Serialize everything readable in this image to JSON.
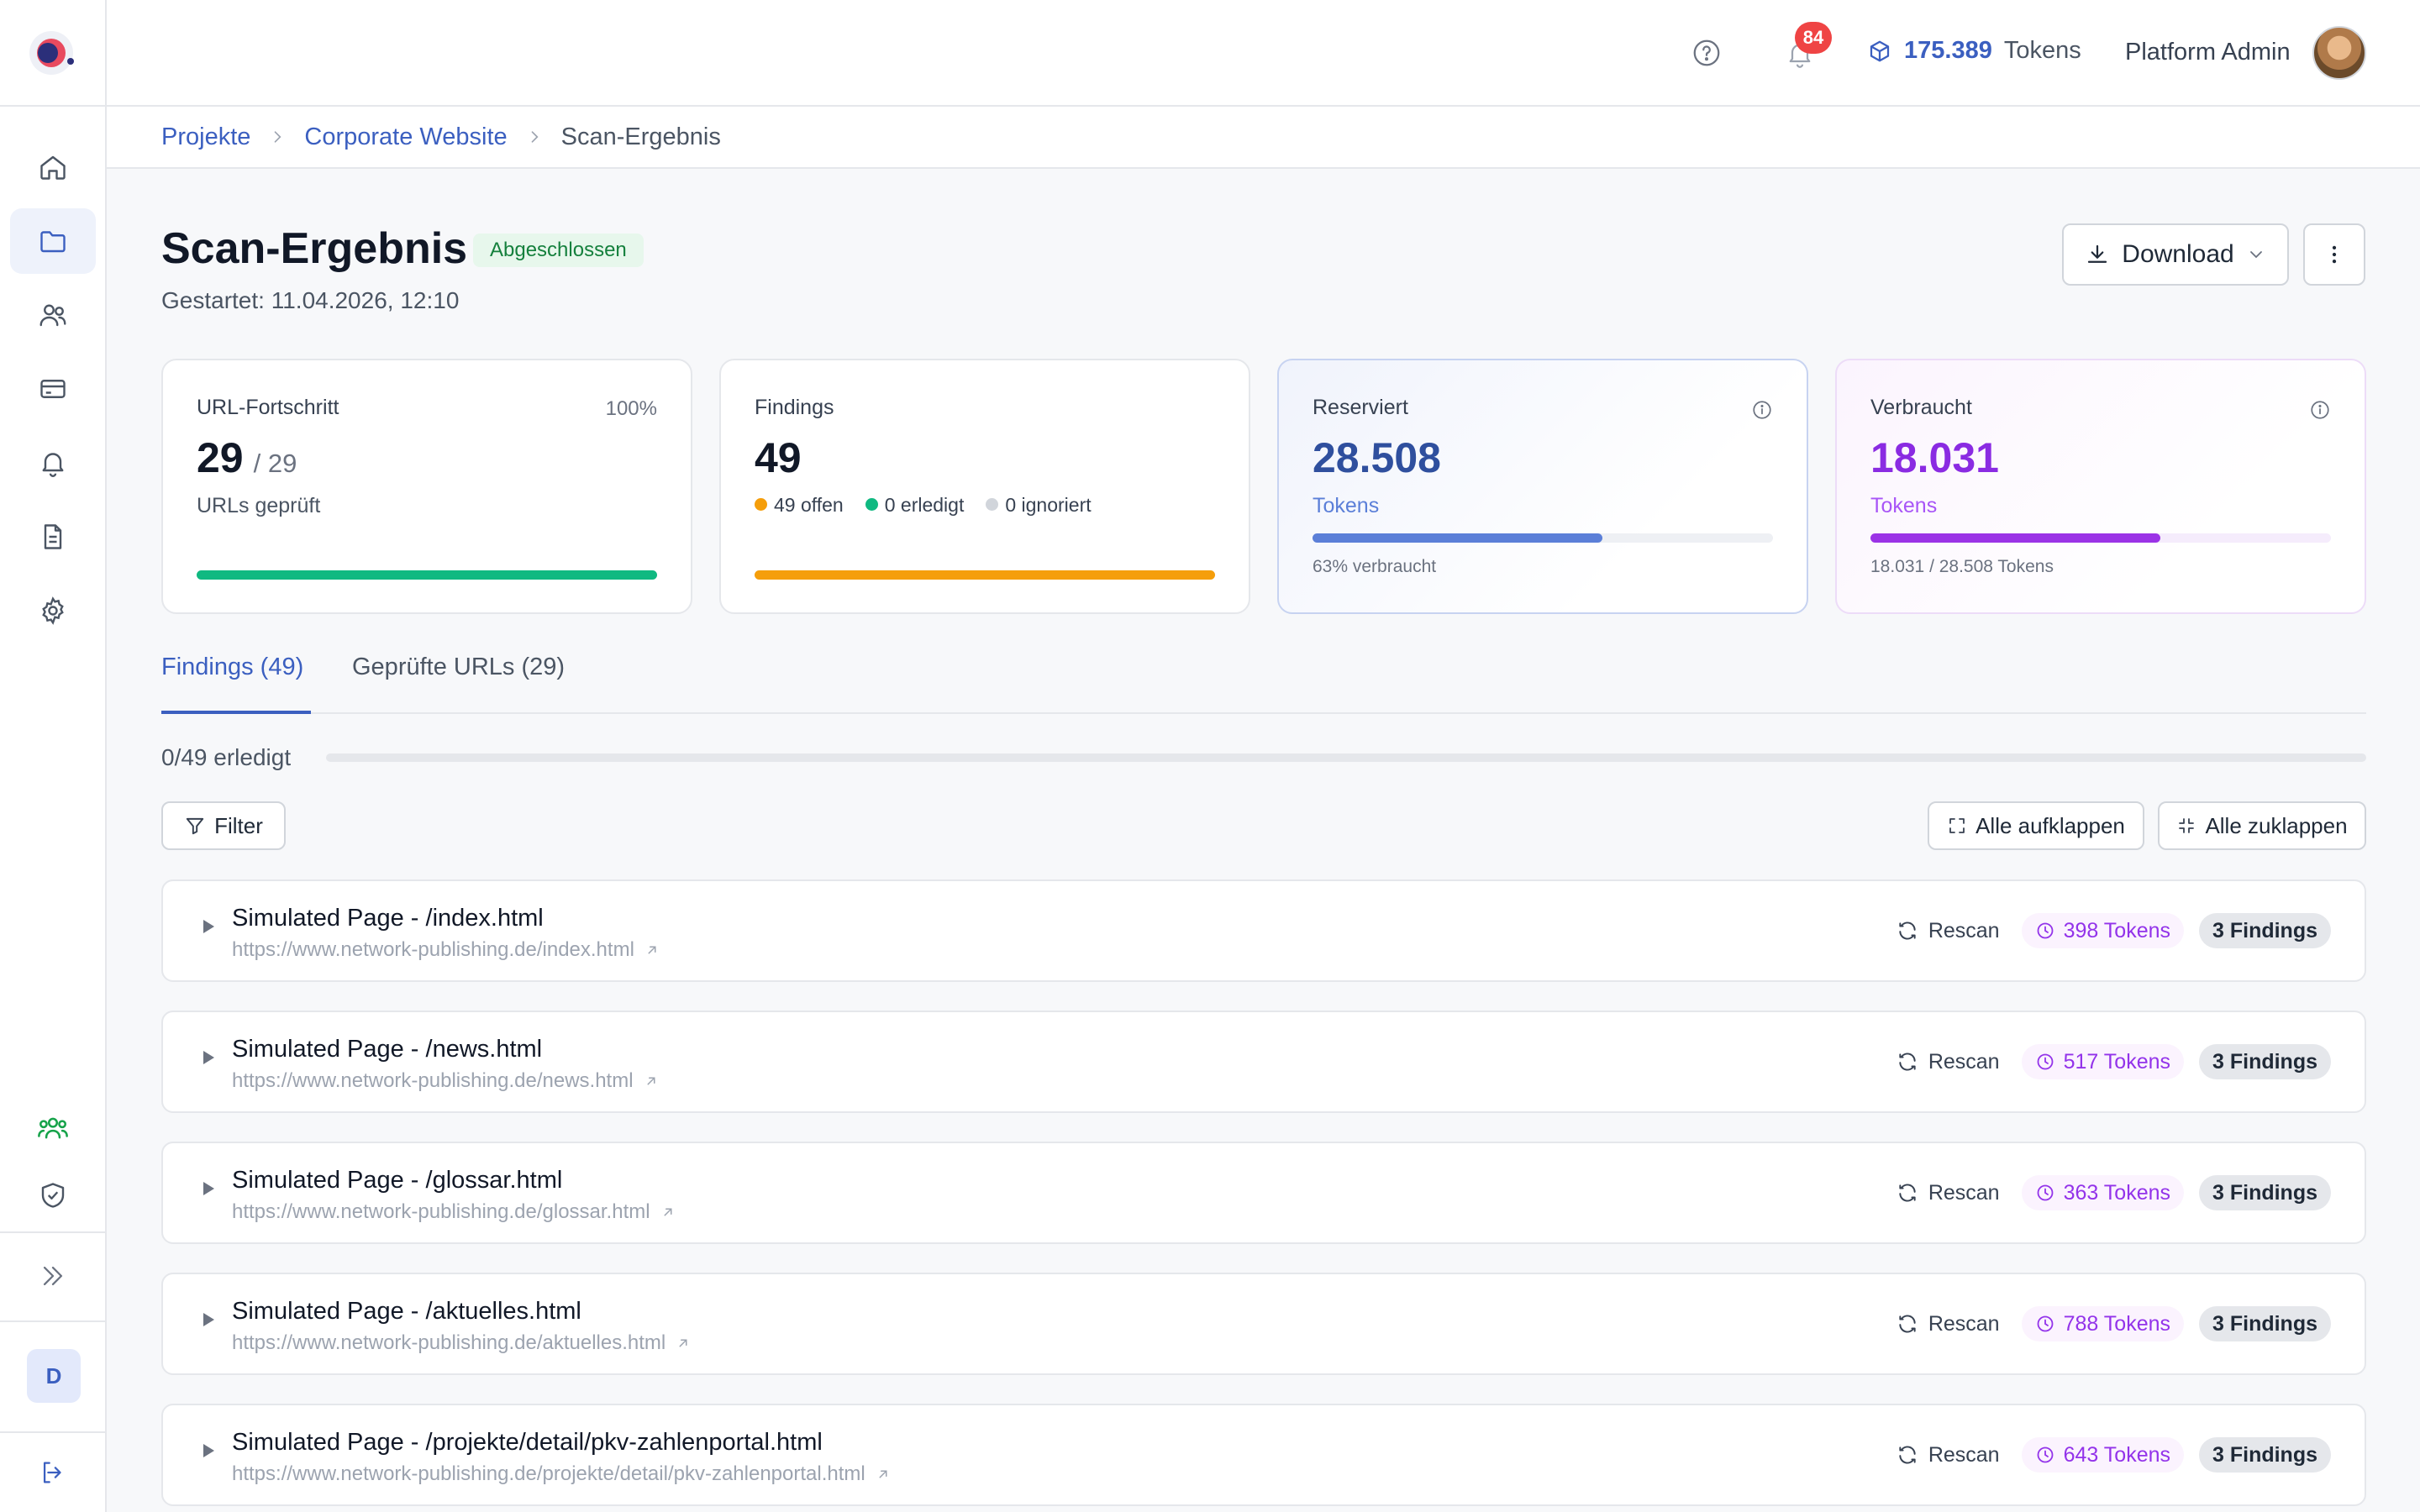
{
  "header": {
    "notifications_count": "84",
    "tokens_value": "175.389",
    "tokens_label": "Tokens",
    "user_name": "Platform Admin"
  },
  "sidebar": {
    "items": [
      {
        "icon": "home-icon"
      },
      {
        "icon": "folder-icon",
        "active": true
      },
      {
        "icon": "users-icon"
      },
      {
        "icon": "credit-card-icon"
      },
      {
        "icon": "bell-icon"
      },
      {
        "icon": "document-icon"
      },
      {
        "icon": "gear-icon"
      },
      {
        "icon": "team-icon"
      },
      {
        "icon": "shield-icon"
      }
    ],
    "user_initial": "D"
  },
  "breadcrumb": {
    "items": [
      "Projekte",
      "Corporate Website",
      "Scan-Ergebnis"
    ]
  },
  "page": {
    "title": "Scan-Ergebnis",
    "status": "Abgeschlossen",
    "started": "Gestartet: 11.04.2026, 12:10",
    "download_label": "Download"
  },
  "cards": {
    "url_progress": {
      "label": "URL-Fortschritt",
      "percent_label": "100%",
      "value": "29",
      "of": "/ 29",
      "sub": "URLs geprüft",
      "fill": 1.0,
      "color": "#10b981"
    },
    "findings": {
      "label": "Findings",
      "value": "49",
      "legend": [
        {
          "text": "49 offen",
          "color": "#f59e0b"
        },
        {
          "text": "0 erledigt",
          "color": "#10b981"
        },
        {
          "text": "0 ignoriert",
          "color": "#d1d5db"
        }
      ],
      "fill": 1.0,
      "color": "#f59e0b"
    },
    "reserved": {
      "label": "Reserviert",
      "value": "28.508",
      "sub": "Tokens",
      "note": "63% verbraucht",
      "fill": 0.63,
      "color": "#5b7fd8",
      "text_color": "#2f4f9e"
    },
    "consumed": {
      "label": "Verbraucht",
      "value": "18.031",
      "sub": "Tokens",
      "note": "18.031 / 28.508 Tokens",
      "fill": 0.63,
      "color": "#9b33e6",
      "text_color": "#8a2be2"
    }
  },
  "tabs": [
    {
      "label": "Findings (49)",
      "active": true
    },
    {
      "label": "Geprüfte URLs (29)",
      "active": false
    }
  ],
  "progress": {
    "label": "0/49 erledigt",
    "fill": 0.0
  },
  "toolbar": {
    "filter_label": "Filter",
    "expand_label": "Alle aufklappen",
    "collapse_label": "Alle zuklappen"
  },
  "rows": [
    {
      "title": "Simulated Page - /index.html",
      "url": "https://www.network-publishing.de/index.html",
      "rescan": "Rescan",
      "tokens": "398 Tokens",
      "findings": "3 Findings"
    },
    {
      "title": "Simulated Page - /news.html",
      "url": "https://www.network-publishing.de/news.html",
      "rescan": "Rescan",
      "tokens": "517 Tokens",
      "findings": "3 Findings"
    },
    {
      "title": "Simulated Page - /glossar.html",
      "url": "https://www.network-publishing.de/glossar.html",
      "rescan": "Rescan",
      "tokens": "363 Tokens",
      "findings": "3 Findings"
    },
    {
      "title": "Simulated Page - /aktuelles.html",
      "url": "https://www.network-publishing.de/aktuelles.html",
      "rescan": "Rescan",
      "tokens": "788 Tokens",
      "findings": "3 Findings"
    },
    {
      "title": "Simulated Page - /projekte/detail/pkv-zahlenportal.html",
      "url": "https://www.network-publishing.de/projekte/detail/pkv-zahlenportal.html",
      "rescan": "Rescan",
      "tokens": "643 Tokens",
      "findings": "3 Findings"
    }
  ]
}
